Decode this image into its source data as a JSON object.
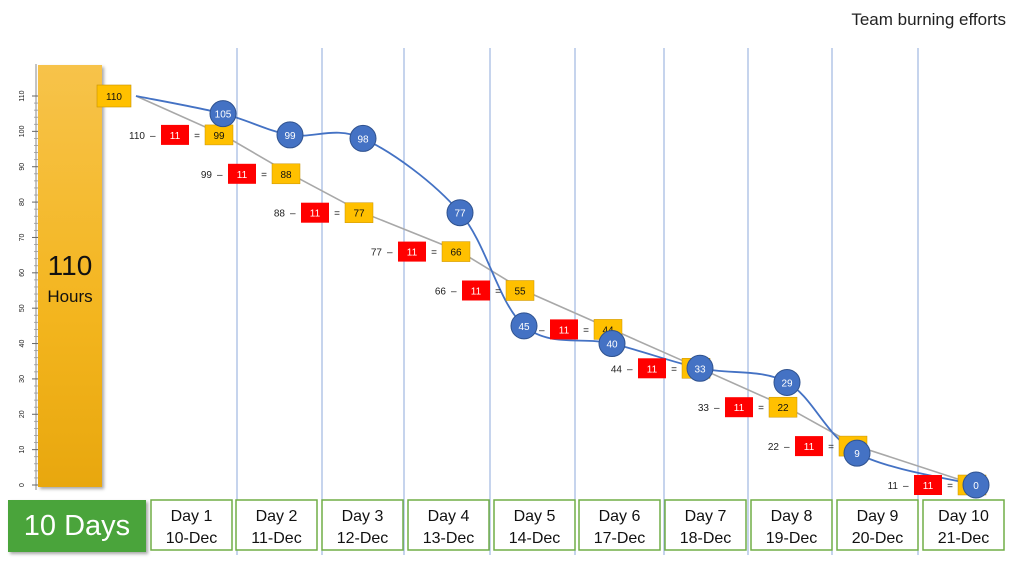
{
  "chart_data": {
    "type": "line",
    "title": "Team burning efforts",
    "total_hours": {
      "value": "110",
      "unit": "Hours"
    },
    "duration_label": "10 Days",
    "ylim": [
      0,
      110
    ],
    "yticks": [
      "0",
      "10",
      "20",
      "30",
      "40",
      "50",
      "60",
      "70",
      "80",
      "90",
      "100",
      "110"
    ],
    "categories": [
      {
        "day": "Day 1",
        "date": "10-Dec"
      },
      {
        "day": "Day 2",
        "date": "11-Dec"
      },
      {
        "day": "Day 3",
        "date": "12-Dec"
      },
      {
        "day": "Day 4",
        "date": "13-Dec"
      },
      {
        "day": "Day 5",
        "date": "14-Dec"
      },
      {
        "day": "Day 6",
        "date": "17-Dec"
      },
      {
        "day": "Day 7",
        "date": "18-Dec"
      },
      {
        "day": "Day 8",
        "date": "19-Dec"
      },
      {
        "day": "Day 9",
        "date": "20-Dec"
      },
      {
        "day": "Day 10",
        "date": "21-Dec"
      }
    ],
    "ideal": {
      "start": "110",
      "rows": [
        {
          "prev": "110",
          "burn": "11",
          "rem": "99"
        },
        {
          "prev": "99",
          "burn": "11",
          "rem": "88"
        },
        {
          "prev": "88",
          "burn": "11",
          "rem": "77"
        },
        {
          "prev": "77",
          "burn": "11",
          "rem": "66"
        },
        {
          "prev": "66",
          "burn": "11",
          "rem": "55"
        },
        {
          "prev": "55",
          "burn": "11",
          "rem": "44"
        },
        {
          "prev": "44",
          "burn": "11",
          "rem": "33"
        },
        {
          "prev": "33",
          "burn": "11",
          "rem": "22"
        },
        {
          "prev": "22",
          "burn": "11",
          "rem": "11"
        },
        {
          "prev": "11",
          "burn": "11",
          "rem": "0"
        }
      ]
    },
    "actual": [
      {
        "x": 1,
        "y": 105
      },
      {
        "x": 2,
        "y": 99
      },
      {
        "x": 3,
        "y": 98
      },
      {
        "x": 4,
        "y": 77
      },
      {
        "x": 5,
        "y": 45
      },
      {
        "x": 6,
        "y": 40
      },
      {
        "x": 7,
        "y": 33
      },
      {
        "x": 8,
        "y": 29
      },
      {
        "x": 9,
        "y": 9
      },
      {
        "x": 10,
        "y": 0
      }
    ],
    "colors": {
      "ideal_line": "#a8a8a8",
      "actual_line": "#4472c4",
      "burn_box": "#ff0000",
      "remaining_box": "#ffc000",
      "day_border": "#70ad47",
      "days_box": "#4aa43b",
      "grid": "#8eaadb"
    }
  }
}
